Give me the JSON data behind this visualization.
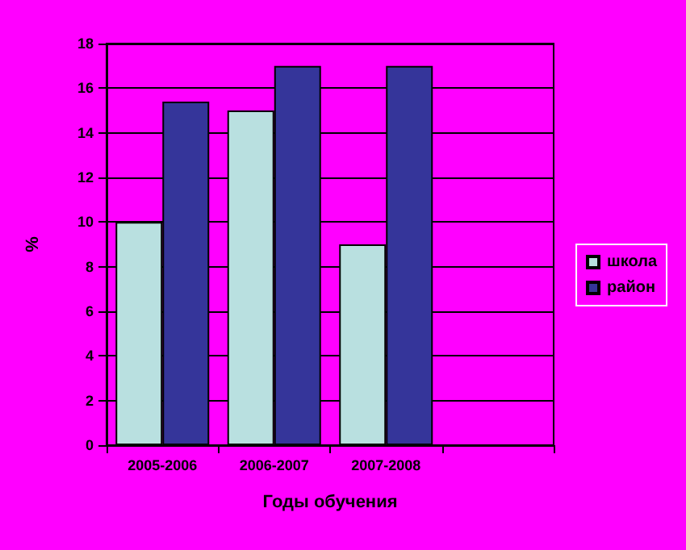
{
  "chart_data": {
    "type": "bar",
    "xlabel": "Годы обучения",
    "ylabel": "%",
    "categories": [
      "2005-2006",
      "2006-2007",
      "2007-2008",
      null
    ],
    "series": [
      {
        "name": "школа",
        "color": "#b9e0e0",
        "values": [
          10,
          15,
          9,
          null
        ]
      },
      {
        "name": "район",
        "color": "#35359a",
        "values": [
          15.4,
          17,
          17,
          null
        ]
      }
    ],
    "ylim": [
      0,
      18
    ],
    "yticks": [
      0,
      2,
      4,
      6,
      8,
      10,
      12,
      14,
      16,
      18
    ],
    "grid": "y",
    "legend": "right"
  }
}
